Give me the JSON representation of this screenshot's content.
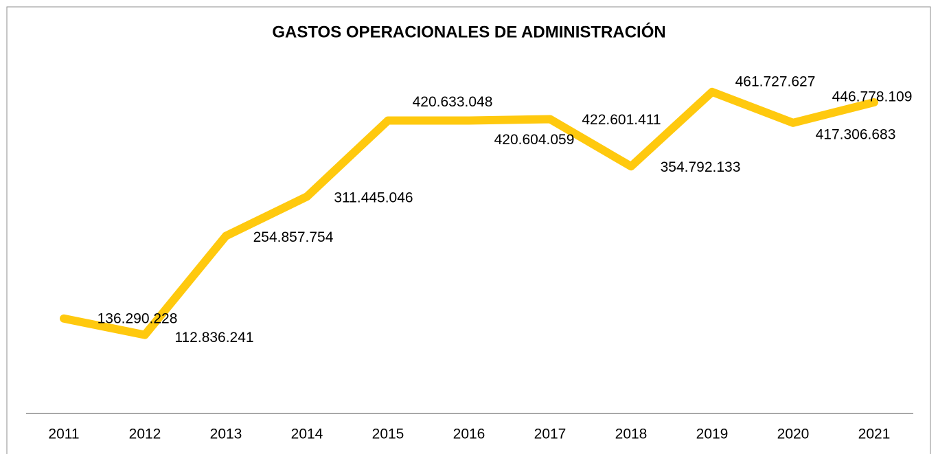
{
  "chart_data": {
    "type": "line",
    "title": "GASTOS OPERACIONALES DE ADMINISTRACIÓN",
    "categories": [
      "2011",
      "2012",
      "2013",
      "2014",
      "2015",
      "2016",
      "2017",
      "2018",
      "2019",
      "2020",
      "2021"
    ],
    "series": [
      {
        "color": "#ffc90e",
        "values": [
          136290228,
          112836241,
          254857754,
          311445046,
          420633048,
          420604059,
          422601411,
          354792133,
          461727627,
          417306683,
          446778109
        ],
        "value_labels": [
          "136.290.228",
          "112.836.241",
          "254.857.754",
          "311.445.046",
          "420.633.048",
          "420.604.059",
          "422.601.411",
          "354.792.133",
          "461.727.627",
          "417.306.683",
          "446.778.109"
        ]
      }
    ],
    "ylim": [
      0,
      500000000
    ]
  }
}
